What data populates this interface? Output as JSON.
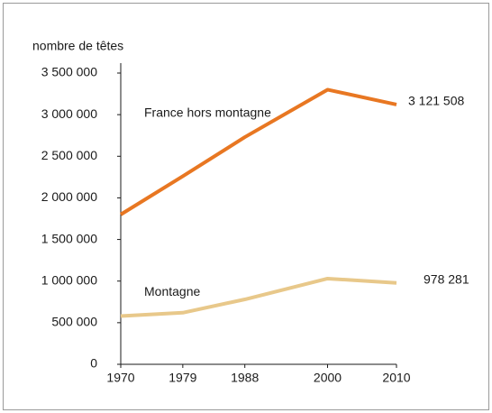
{
  "chart_data": {
    "type": "line",
    "y_label": "nombre de têtes",
    "x": [
      1970,
      1979,
      1988,
      2000,
      2010
    ],
    "xlim": [
      1970,
      2010
    ],
    "xticks": [
      1970,
      1979,
      1988,
      2000,
      2010
    ],
    "ylim": [
      0,
      3500000
    ],
    "yticks": [
      0,
      {
        "value": 500000,
        "label": "500 000"
      },
      {
        "value": 1000000,
        "label": "1 000 000"
      },
      {
        "value": 1500000,
        "label": "1 500 000"
      },
      {
        "value": 2000000,
        "label": "2 000 000"
      },
      {
        "value": 2500000,
        "label": "2 500 000"
      },
      {
        "value": 3000000,
        "label": "3 000 000"
      },
      {
        "value": 3500000,
        "label": "3 500 000"
      }
    ],
    "series": [
      {
        "name": "France hors montagne",
        "color": "#e87722",
        "values": [
          1800000,
          2260000,
          2730000,
          3300000,
          3121508
        ],
        "value_labels": [
          null,
          null,
          null,
          null,
          "3 121 508"
        ]
      },
      {
        "name": "Montagne",
        "color": "#e8c88a",
        "values": [
          580000,
          620000,
          780000,
          1030000,
          978281
        ],
        "value_labels": [
          null,
          null,
          null,
          null,
          "978 281"
        ]
      }
    ]
  }
}
